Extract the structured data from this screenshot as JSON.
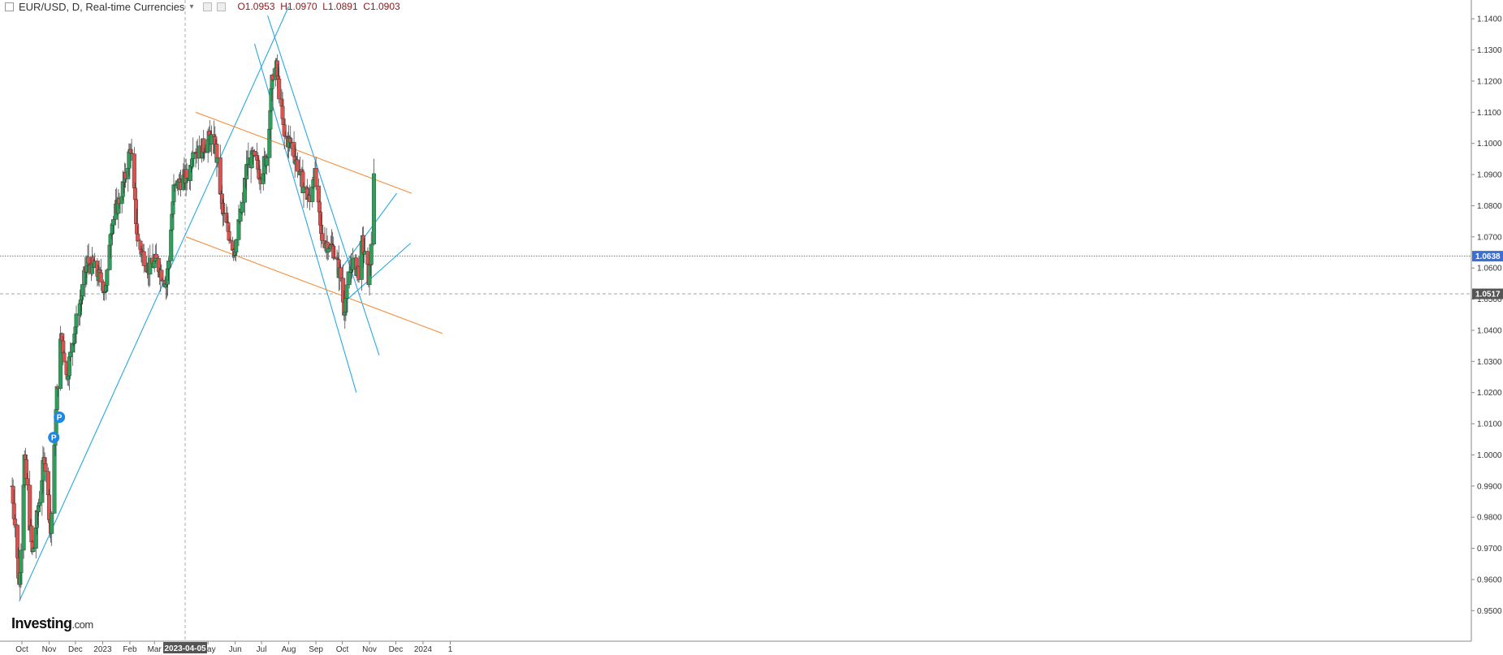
{
  "header": {
    "symbol": "EUR/USD, D, Real-time Currencies",
    "caret": "▾",
    "open": "O1.0953",
    "high": "H1.0970",
    "low": "L1.0891",
    "close": "C1.0903"
  },
  "logo": {
    "main": "Investing",
    "suffix": ".com"
  },
  "colors": {
    "up": "#2e9e5b",
    "down": "#d9534f",
    "trend_blue": "#29a9e1",
    "trend_orange": "#f28c38",
    "price_line": "#3a6fd6",
    "grid": "#999999"
  },
  "chart_data": {
    "type": "candlestick",
    "y_ticks": [
      "1.1400",
      "1.1300",
      "1.1200",
      "1.1100",
      "1.1000",
      "1.0900",
      "1.0800",
      "1.0700",
      "1.0600",
      "1.0500",
      "1.0400",
      "1.0300",
      "1.0200",
      "1.0100",
      "1.0000",
      "0.9900",
      "0.9800",
      "0.9700",
      "0.9600",
      "0.9500"
    ],
    "x_ticks": [
      "Oct",
      "Nov",
      "Dec",
      "2023",
      "Feb",
      "Mar",
      "2023-04-05",
      "May",
      "Jun",
      "Jul",
      "Aug",
      "Sep",
      "Oct",
      "Nov",
      "Dec",
      "2024",
      "1"
    ],
    "current_price": "1.0638",
    "crosshair_price": "1.0517",
    "crosshair_date": "2023-04-05",
    "markers": [
      "P",
      "P"
    ],
    "ylim": [
      0.948,
      1.145
    ],
    "anchors": [
      [
        "2022-09-20",
        0.99
      ],
      [
        "2022-09-28",
        0.958
      ],
      [
        "2022-10-04",
        0.999
      ],
      [
        "2022-10-13",
        0.968
      ],
      [
        "2022-10-27",
        1.0
      ],
      [
        "2022-11-03",
        0.975
      ],
      [
        "2022-11-10",
        1.02
      ],
      [
        "2022-11-15",
        1.039
      ],
      [
        "2022-11-21",
        1.025
      ],
      [
        "2022-11-30",
        1.04
      ],
      [
        "2022-12-07",
        1.05
      ],
      [
        "2022-12-15",
        1.062
      ],
      [
        "2022-12-22",
        1.06
      ],
      [
        "2023-01-05",
        1.053
      ],
      [
        "2023-01-10",
        1.073
      ],
      [
        "2023-01-18",
        1.08
      ],
      [
        "2023-01-26",
        1.088
      ],
      [
        "2023-02-02",
        1.099
      ],
      [
        "2023-02-10",
        1.068
      ],
      [
        "2023-02-23",
        1.06
      ],
      [
        "2023-03-03",
        1.062
      ],
      [
        "2023-03-10",
        1.058
      ],
      [
        "2023-03-15",
        1.055
      ],
      [
        "2023-03-23",
        1.085
      ],
      [
        "2023-03-31",
        1.088
      ],
      [
        "2023-04-10",
        1.09
      ],
      [
        "2023-04-14",
        1.1
      ],
      [
        "2023-04-21",
        1.097
      ],
      [
        "2023-05-04",
        1.102
      ],
      [
        "2023-05-10",
        1.098
      ],
      [
        "2023-05-18",
        1.077
      ],
      [
        "2023-05-31",
        1.066
      ],
      [
        "2023-06-08",
        1.078
      ],
      [
        "2023-06-15",
        1.094
      ],
      [
        "2023-06-22",
        1.095
      ],
      [
        "2023-06-30",
        1.09
      ],
      [
        "2023-07-07",
        1.096
      ],
      [
        "2023-07-14",
        1.123
      ],
      [
        "2023-07-18",
        1.124
      ],
      [
        "2023-07-27",
        1.102
      ],
      [
        "2023-08-04",
        1.1
      ],
      [
        "2023-08-17",
        1.087
      ],
      [
        "2023-08-25",
        1.081
      ],
      [
        "2023-08-30",
        1.092
      ],
      [
        "2023-09-07",
        1.07
      ],
      [
        "2023-09-21",
        1.066
      ],
      [
        "2023-09-29",
        1.057
      ],
      [
        "2023-10-03",
        1.047
      ],
      [
        "2023-10-12",
        1.062
      ],
      [
        "2023-10-20",
        1.059
      ],
      [
        "2023-10-24",
        1.068
      ],
      [
        "2023-10-31",
        1.057
      ],
      [
        "2023-11-02",
        1.062
      ],
      [
        "2023-11-06",
        1.0903
      ]
    ],
    "trendlines": [
      {
        "color": "trend_blue",
        "from": [
          "2022-09-28",
          0.953
        ],
        "to": [
          "2023-08-01",
          1.144
        ]
      },
      {
        "color": "trend_blue",
        "from": [
          "2023-06-23",
          1.132
        ],
        "to": [
          "2023-10-17",
          1.02
        ]
      },
      {
        "color": "trend_blue",
        "from": [
          "2023-07-08",
          1.141
        ],
        "to": [
          "2023-11-12",
          1.032
        ]
      },
      {
        "color": "trend_blue",
        "from": [
          "2023-09-25",
          1.058
        ],
        "to": [
          "2023-12-02",
          1.084
        ]
      },
      {
        "color": "trend_blue",
        "from": [
          "2023-10-03",
          1.049
        ],
        "to": [
          "2023-12-18",
          1.068
        ]
      },
      {
        "color": "trend_orange",
        "from": [
          "2023-04-17",
          1.11
        ],
        "to": [
          "2023-12-19",
          1.084
        ]
      },
      {
        "color": "trend_orange",
        "from": [
          "2023-04-06",
          1.07
        ],
        "to": [
          "2024-01-23",
          1.039
        ]
      }
    ]
  }
}
